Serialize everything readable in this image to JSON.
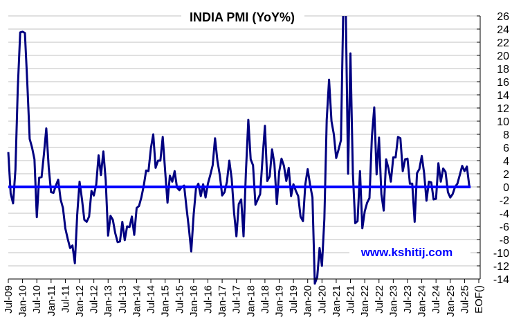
{
  "chart_data": {
    "type": "line",
    "title": "INDIA PMI (YoY%)",
    "xlabel": "",
    "ylabel": "",
    "ylim": [
      -14,
      26
    ],
    "y_ticks": [
      26,
      24,
      22,
      20,
      18,
      16,
      14,
      12,
      10,
      8,
      6,
      4,
      2,
      0,
      -2,
      -4,
      -6,
      -8,
      -10,
      -12,
      -14
    ],
    "x_tick_labels": [
      "Jul-09",
      "Jan-10",
      "Jul-10",
      "Jan-11",
      "Jul-11",
      "Jan-12",
      "Jul-12",
      "Jan-13",
      "Jul-13",
      "Jan-14",
      "Jul-14",
      "Jan-15",
      "Jul-15",
      "Jan-16",
      "Jul-16",
      "Jan-17",
      "Jul-17",
      "Jan-18",
      "Jul-18",
      "Jan-19",
      "Jul-19",
      "Jan-20",
      "Jul-20",
      "Jan-21",
      "Jul-21",
      "Jan-22",
      "Jul-22",
      "Jan-23",
      "Jul-23",
      "Jan-24",
      "Jul-24",
      "Jan-25",
      "Jul-25",
      "EOF()"
    ],
    "y_axis_position": "right",
    "grid": true,
    "legend": null,
    "annotation": "www.kshitij.com",
    "colors": {
      "series": "#000080",
      "zero_line": "#0000ff",
      "grid": "#c0c0c0",
      "watermark": "#0000ff"
    },
    "series": [
      {
        "name": "India PMI YoY%",
        "start": "Jul-09",
        "frequency": "monthly",
        "values": [
          5.3,
          -1.0,
          -2.5,
          2.6,
          15.0,
          23.5,
          23.6,
          23.4,
          15.7,
          7.3,
          6.0,
          4.2,
          -4.6,
          1.4,
          1.5,
          5.0,
          8.9,
          3.0,
          -0.8,
          -0.9,
          0.2,
          1.1,
          -1.9,
          -3.2,
          -6.3,
          -7.9,
          -9.3,
          -8.9,
          -11.6,
          -4.2,
          0.8,
          -1.9,
          -5.0,
          -5.3,
          -4.5,
          -0.6,
          -1.3,
          0.4,
          4.8,
          1.8,
          5.4,
          1.0,
          -7.4,
          -4.4,
          -5.0,
          -7.0,
          -8.4,
          -8.3,
          -5.3,
          -8.1,
          -6.0,
          -6.1,
          -4.5,
          -7.3,
          -3.2,
          -2.9,
          -1.6,
          0.2,
          2.5,
          2.4,
          5.9,
          8.0,
          2.9,
          4.0,
          4.0,
          7.6,
          2.4,
          -2.4,
          1.7,
          0.8,
          2.4,
          -0.1,
          -0.5,
          0.0,
          0.2,
          -3.2,
          -6.3,
          -9.8,
          -4.2,
          -0.2,
          0.5,
          -1.4,
          0.4,
          -1.6,
          0.5,
          1.8,
          3.3,
          7.4,
          4.0,
          1.8,
          -1.3,
          -0.8,
          0.8,
          4.0,
          1.3,
          -3.9,
          -7.5,
          -2.6,
          -1.9,
          -7.5,
          2.2,
          10.2,
          4.2,
          3.3,
          -2.7,
          -1.9,
          -1.1,
          4.4,
          9.3,
          0.9,
          1.6,
          5.7,
          3.5,
          -2.6,
          2.3,
          4.3,
          3.2,
          0.9,
          2.9,
          -1.4,
          0.4,
          -0.6,
          -1.4,
          -4.5,
          -5.2,
          0.4,
          2.7,
          0.3,
          -1.6,
          -14.7,
          -13.7,
          -9.3,
          -12.0,
          -4.9,
          10.2,
          16.3,
          10.0,
          8.0,
          4.4,
          5.7,
          7.1,
          27.4,
          27.4,
          2.0,
          20.3,
          2.1,
          -5.5,
          -5.2,
          2.4,
          -6.3,
          -3.7,
          -2.4,
          -1.7,
          7.6,
          12.1,
          1.9,
          7.5,
          -1.1,
          -3.6,
          4.2,
          2.8,
          0.8,
          4.5,
          4.5,
          7.6,
          7.4,
          2.4,
          4.2,
          4.3,
          0.5,
          0.5,
          -5.3,
          2.1,
          2.7,
          4.7,
          2.1,
          -2.1,
          0.8,
          0.7,
          -1.9,
          -1.8,
          3.6,
          0.8,
          2.8,
          2.3,
          -0.8,
          -1.6,
          -1.1,
          0.0,
          0.5,
          1.8,
          3.2,
          2.4,
          3.1,
          0.1
        ]
      },
      {
        "name": "Zero line",
        "values": [
          0
        ]
      }
    ]
  }
}
